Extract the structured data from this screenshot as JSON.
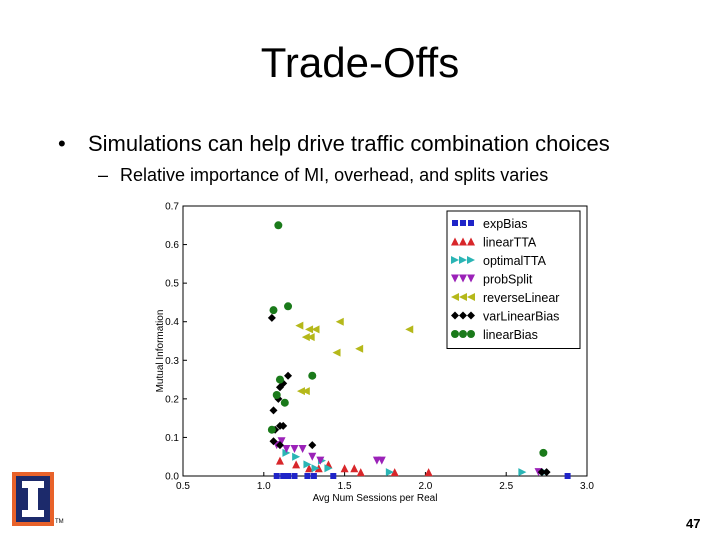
{
  "slide": {
    "title": "Trade-Offs",
    "bullet_1": "Simulations can help drive traffic combination choices",
    "bullet_2": "Relative importance of MI, overhead, and splits varies",
    "page_number": "47",
    "tm": "TM",
    "logo_icon": "university-block-i-icon",
    "logo_colors": {
      "outer": "#e8622a",
      "inner": "#1c2a6b",
      "letter": "#ffffff"
    }
  },
  "chart_data": {
    "type": "scatter",
    "xlabel": "Avg Num Sessions per Real",
    "ylabel": "Mutual Information",
    "xlim": [
      0.5,
      3.0
    ],
    "ylim": [
      0.0,
      0.7
    ],
    "xticks": [
      "0.5",
      "1.0",
      "1.5",
      "2.0",
      "2.5",
      "3.0"
    ],
    "yticks": [
      "0.0",
      "0.1",
      "0.2",
      "0.3",
      "0.4",
      "0.5",
      "0.6",
      "0.7"
    ],
    "legend_position": "top-right",
    "series": [
      {
        "name": "expBias",
        "marker": "square",
        "color": "#1f24c8",
        "points": [
          [
            1.08,
            0.0
          ],
          [
            1.12,
            0.0
          ],
          [
            1.15,
            0.0
          ],
          [
            1.19,
            0.0
          ],
          [
            1.27,
            0.0
          ],
          [
            1.31,
            0.0
          ],
          [
            1.43,
            0.0
          ],
          [
            2.88,
            0.0
          ]
        ]
      },
      {
        "name": "linearTTA",
        "marker": "triangle-up",
        "color": "#d8262a",
        "points": [
          [
            1.1,
            0.04
          ],
          [
            1.2,
            0.03
          ],
          [
            1.28,
            0.02
          ],
          [
            1.34,
            0.02
          ],
          [
            1.4,
            0.03
          ],
          [
            1.5,
            0.02
          ],
          [
            1.56,
            0.02
          ],
          [
            1.6,
            0.01
          ],
          [
            1.81,
            0.01
          ],
          [
            2.02,
            0.01
          ]
        ]
      },
      {
        "name": "optimalTTA",
        "marker": "triangle-right",
        "color": "#2ab5b5",
        "points": [
          [
            1.14,
            0.06
          ],
          [
            1.2,
            0.05
          ],
          [
            1.27,
            0.03
          ],
          [
            1.32,
            0.02
          ],
          [
            1.36,
            0.04
          ],
          [
            1.4,
            0.02
          ],
          [
            1.78,
            0.01
          ],
          [
            2.6,
            0.01
          ],
          [
            2.74,
            0.01
          ]
        ]
      },
      {
        "name": "probSplit",
        "marker": "triangle-down",
        "color": "#9b22b8",
        "points": [
          [
            1.08,
            0.08
          ],
          [
            1.11,
            0.09
          ],
          [
            1.14,
            0.07
          ],
          [
            1.19,
            0.07
          ],
          [
            1.24,
            0.07
          ],
          [
            1.3,
            0.05
          ],
          [
            1.35,
            0.04
          ],
          [
            1.7,
            0.04
          ],
          [
            1.73,
            0.04
          ],
          [
            2.7,
            0.01
          ]
        ]
      },
      {
        "name": "reverseLinear",
        "marker": "triangle-left",
        "color": "#b5b81a",
        "points": [
          [
            1.22,
            0.39
          ],
          [
            1.28,
            0.38
          ],
          [
            1.32,
            0.38
          ],
          [
            1.26,
            0.36
          ],
          [
            1.29,
            0.36
          ],
          [
            1.47,
            0.4
          ],
          [
            1.45,
            0.32
          ],
          [
            1.59,
            0.33
          ],
          [
            1.9,
            0.38
          ],
          [
            1.23,
            0.22
          ],
          [
            1.26,
            0.22
          ]
        ]
      },
      {
        "name": "varLinearBias",
        "marker": "diamond",
        "color": "#000000",
        "points": [
          [
            1.05,
            0.41
          ],
          [
            1.1,
            0.23
          ],
          [
            1.12,
            0.24
          ],
          [
            1.09,
            0.2
          ],
          [
            1.06,
            0.17
          ],
          [
            1.1,
            0.13
          ],
          [
            1.12,
            0.13
          ],
          [
            1.07,
            0.12
          ],
          [
            1.06,
            0.09
          ],
          [
            1.1,
            0.08
          ],
          [
            1.15,
            0.26
          ],
          [
            1.3,
            0.08
          ],
          [
            2.72,
            0.01
          ],
          [
            2.75,
            0.01
          ]
        ]
      },
      {
        "name": "linearBias",
        "marker": "circle",
        "color": "#1a7a1a",
        "points": [
          [
            1.09,
            0.65
          ],
          [
            1.06,
            0.43
          ],
          [
            1.15,
            0.44
          ],
          [
            1.1,
            0.25
          ],
          [
            1.13,
            0.19
          ],
          [
            1.08,
            0.21
          ],
          [
            1.3,
            0.26
          ],
          [
            1.05,
            0.12
          ],
          [
            2.73,
            0.06
          ]
        ]
      }
    ]
  }
}
